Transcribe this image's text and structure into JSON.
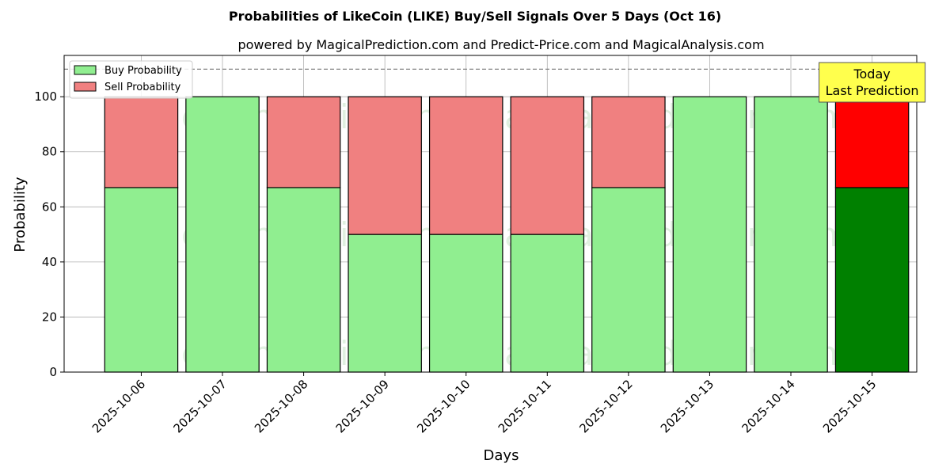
{
  "chart_data": {
    "type": "bar",
    "stacked": true,
    "title": "Probabilities of LikeCoin (LIKE) Buy/Sell Signals Over 5 Days (Oct 16)",
    "subtitle": "powered by MagicalPrediction.com and Predict-Price.com and MagicalAnalysis.com",
    "xlabel": "Days",
    "ylabel": "Probability",
    "ylim": [
      0,
      115
    ],
    "yticks": [
      0,
      20,
      40,
      60,
      80,
      100
    ],
    "reference_line": 110,
    "grid": true,
    "legend_position": "top-left",
    "categories": [
      "2025-10-06",
      "2025-10-07",
      "2025-10-08",
      "2025-10-09",
      "2025-10-10",
      "2025-10-11",
      "2025-10-12",
      "2025-10-13",
      "2025-10-14",
      "2025-10-15"
    ],
    "series": [
      {
        "name": "Buy Probability",
        "values": [
          67,
          100,
          67,
          50,
          50,
          50,
          67,
          100,
          100,
          67
        ],
        "color": "#90ee90",
        "highlight_color": "#008000"
      },
      {
        "name": "Sell Probability",
        "values": [
          33,
          0,
          33,
          50,
          50,
          50,
          33,
          0,
          0,
          33
        ],
        "color": "#f08080",
        "highlight_color": "#ff0000"
      }
    ],
    "highlight_index": 9,
    "annotation": {
      "line1": "Today",
      "line2": "Last Prediction",
      "color": "#ffff4d"
    },
    "watermarks": [
      "MagicalAnalysis.com",
      "MagicalPrediction.com"
    ]
  }
}
